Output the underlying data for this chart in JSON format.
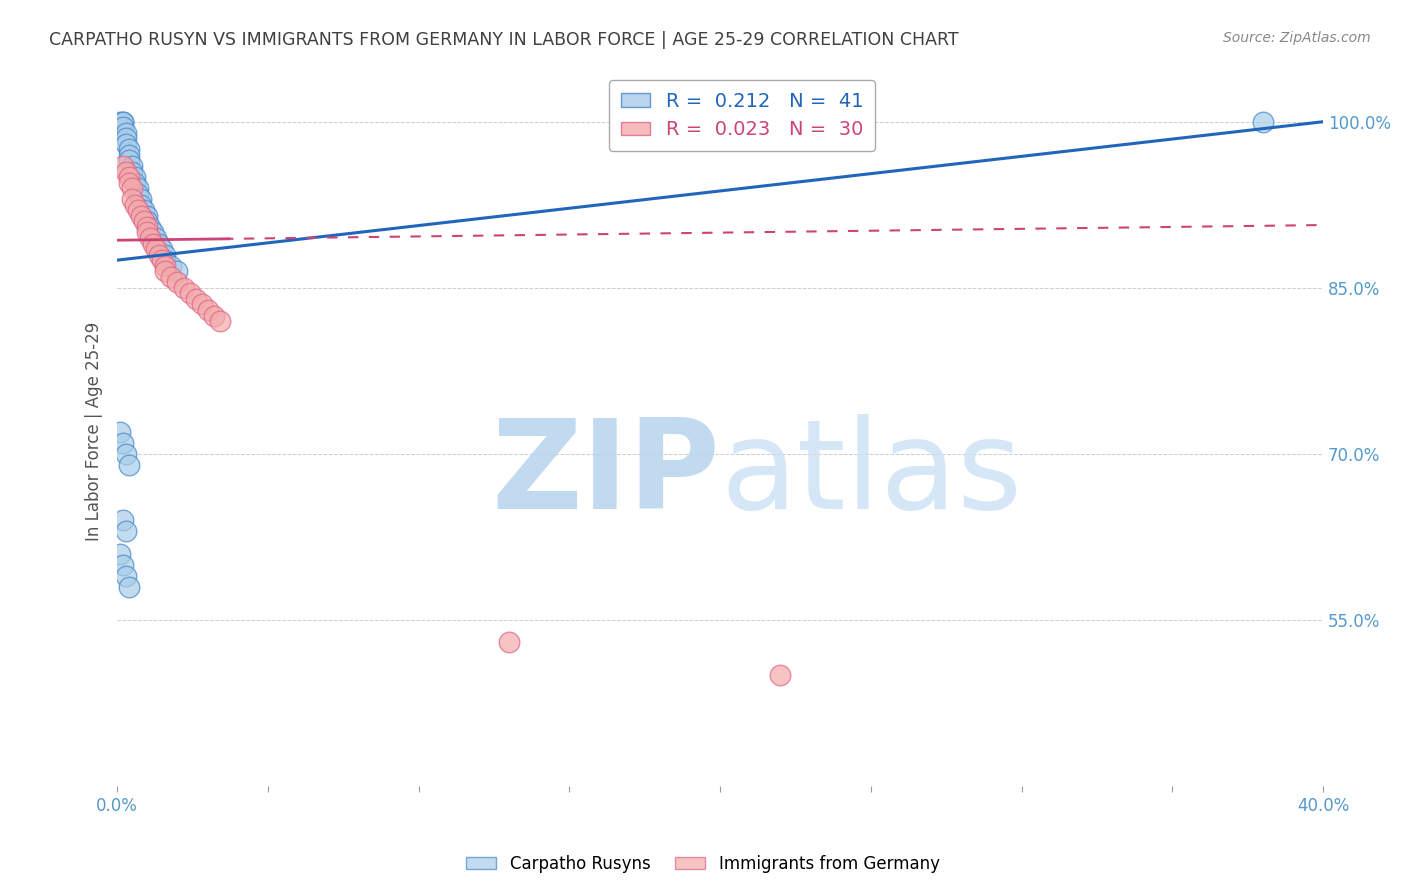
{
  "title": "CARPATHO RUSYN VS IMMIGRANTS FROM GERMANY IN LABOR FORCE | AGE 25-29 CORRELATION CHART",
  "source": "Source: ZipAtlas.com",
  "ylabel": "In Labor Force | Age 25-29",
  "xlim": [
    0.0,
    0.4
  ],
  "ylim": [
    0.4,
    1.04
  ],
  "xticks": [
    0.0,
    0.05,
    0.1,
    0.15,
    0.2,
    0.25,
    0.3,
    0.35,
    0.4
  ],
  "yticks": [
    0.55,
    0.7,
    0.85,
    1.0
  ],
  "ytick_labels": [
    "55.0%",
    "70.0%",
    "85.0%",
    "100.0%"
  ],
  "blue_scatter_x": [
    0.001,
    0.002,
    0.002,
    0.002,
    0.003,
    0.003,
    0.003,
    0.004,
    0.004,
    0.004,
    0.005,
    0.005,
    0.006,
    0.006,
    0.007,
    0.007,
    0.008,
    0.008,
    0.009,
    0.01,
    0.01,
    0.011,
    0.012,
    0.013,
    0.014,
    0.015,
    0.016,
    0.016,
    0.018,
    0.02,
    0.001,
    0.002,
    0.003,
    0.004,
    0.002,
    0.003,
    0.001,
    0.002,
    0.003,
    0.004,
    0.38
  ],
  "blue_scatter_y": [
    1.0,
    1.0,
    1.0,
    0.995,
    0.99,
    0.985,
    0.98,
    0.975,
    0.97,
    0.965,
    0.96,
    0.955,
    0.95,
    0.945,
    0.94,
    0.935,
    0.93,
    0.925,
    0.92,
    0.915,
    0.91,
    0.905,
    0.9,
    0.895,
    0.89,
    0.885,
    0.88,
    0.875,
    0.87,
    0.865,
    0.72,
    0.71,
    0.7,
    0.69,
    0.64,
    0.63,
    0.61,
    0.6,
    0.59,
    0.58,
    1.0
  ],
  "pink_scatter_x": [
    0.002,
    0.003,
    0.004,
    0.004,
    0.005,
    0.005,
    0.006,
    0.007,
    0.008,
    0.009,
    0.01,
    0.01,
    0.011,
    0.012,
    0.013,
    0.014,
    0.015,
    0.016,
    0.016,
    0.018,
    0.02,
    0.022,
    0.024,
    0.026,
    0.028,
    0.03,
    0.032,
    0.034,
    0.13,
    0.22
  ],
  "pink_scatter_y": [
    0.96,
    0.955,
    0.95,
    0.945,
    0.94,
    0.93,
    0.925,
    0.92,
    0.915,
    0.91,
    0.905,
    0.9,
    0.895,
    0.89,
    0.885,
    0.88,
    0.875,
    0.87,
    0.865,
    0.86,
    0.855,
    0.85,
    0.845,
    0.84,
    0.835,
    0.83,
    0.825,
    0.82,
    0.53,
    0.5
  ],
  "blue_R": 0.212,
  "blue_N": 41,
  "pink_R": 0.023,
  "pink_N": 30,
  "blue_fill_color": "#aacce8",
  "pink_fill_color": "#f4aaaa",
  "blue_edge_color": "#4488cc",
  "pink_edge_color": "#dd6688",
  "blue_line_color": "#2266bb",
  "pink_line_color": "#cc4477",
  "grid_color": "#cccccc",
  "title_color": "#404040",
  "axis_label_color": "#5599cc",
  "ylabel_color": "#555555",
  "watermark_color": "#c8dff5",
  "background_color": "#ffffff"
}
